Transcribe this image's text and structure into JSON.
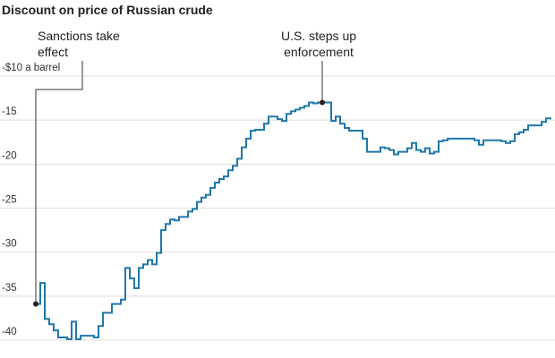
{
  "chart_data": {
    "type": "line",
    "title": "Discount on price of Russian crude",
    "series": [
      {
        "name": null,
        "color": "#1f78aa",
        "values": [
          -35.9,
          -33.5,
          -37.6,
          -38.2,
          -38.9,
          -39.7,
          -39.7,
          -39.9,
          -37.9,
          -39.9,
          -39.5,
          -39.5,
          -39.5,
          -39.7,
          -38.4,
          -36.9,
          -36.9,
          -35.9,
          -35.9,
          -35.4,
          -31.8,
          -33.0,
          -34.1,
          -31.8,
          -31.4,
          -30.9,
          -31.4,
          -30.1,
          -27.5,
          -26.8,
          -26.3,
          -26.4,
          -26.0,
          -26.0,
          -25.4,
          -25.1,
          -24.3,
          -23.8,
          -23.5,
          -22.7,
          -22.1,
          -21.7,
          -21.4,
          -20.7,
          -20.2,
          -19.4,
          -18.1,
          -17.1,
          -16.2,
          -16.1,
          -16.1,
          -15.4,
          -14.6,
          -14.6,
          -14.9,
          -15.1,
          -14.3,
          -14.0,
          -13.8,
          -13.6,
          -13.4,
          -13.0,
          -13.1,
          -13.0,
          -13.0,
          -13.0,
          -15.1,
          -14.6,
          -15.4,
          -15.9,
          -16.2,
          -16.2,
          -16.2,
          -17.1,
          -18.6,
          -18.6,
          -18.6,
          -18.1,
          -18.2,
          -18.4,
          -18.9,
          -18.6,
          -18.6,
          -18.2,
          -17.6,
          -18.4,
          -18.6,
          -18.2,
          -18.8,
          -18.6,
          -17.4,
          -17.3,
          -17.1,
          -17.1,
          -17.1,
          -17.1,
          -17.1,
          -17.1,
          -17.3,
          -17.8,
          -17.3,
          -17.3,
          -17.3,
          -17.3,
          -17.4,
          -17.6,
          -17.4,
          -16.6,
          -16.4,
          -16.1,
          -15.6,
          -15.6,
          -15.6,
          -15.2,
          -14.8,
          -14.7
        ]
      }
    ],
    "ylim": [
      -40,
      -10
    ],
    "yticks": [
      {
        "value": -10,
        "label": "-$10 a barrel"
      },
      -15,
      -20,
      -25,
      -30,
      -35,
      -40
    ],
    "grid": true,
    "annotations": [
      {
        "lines": [
          "Sanctions take",
          "effect"
        ]
      },
      {
        "lines": [
          "U.S. steps up",
          "enforcement"
        ]
      }
    ]
  }
}
